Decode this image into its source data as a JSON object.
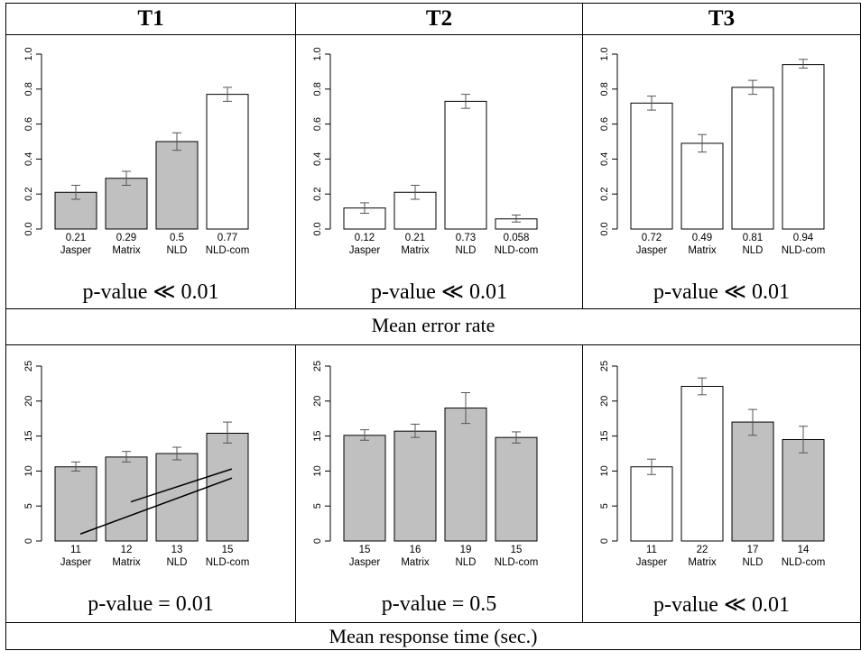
{
  "columns": [
    "T1",
    "T2",
    "T3"
  ],
  "sections": [
    "Mean error rate",
    "Mean response time (sec.)"
  ],
  "p_values": [
    [
      "p-value ≪ 0.01",
      "p-value ≪ 0.01",
      "p-value ≪ 0.01"
    ],
    [
      "p-value = 0.01",
      "p-value = 0.5",
      "p-value ≪ 0.01"
    ]
  ],
  "colors": {
    "shaded": "#c0c0c0",
    "unshaded": "#ffffff",
    "stroke": "#000000"
  },
  "chart_data": [
    {
      "type": "bar",
      "row": 0,
      "col": 0,
      "categories": [
        "Jasper",
        "Matrix",
        "NLD",
        "NLD-com"
      ],
      "values": [
        0.21,
        0.29,
        0.5,
        0.77
      ],
      "value_labels": [
        "0.21",
        "0.29",
        "0.5",
        "0.77"
      ],
      "errors": [
        [
          0.17,
          0.25
        ],
        [
          0.25,
          0.33
        ],
        [
          0.45,
          0.55
        ],
        [
          0.73,
          0.81
        ]
      ],
      "fill": [
        "shaded",
        "shaded",
        "shaded",
        "unshaded"
      ],
      "ylim": [
        0,
        1.0
      ],
      "yticks": [
        "0.0",
        "0.2",
        "0.4",
        "0.6",
        "0.8",
        "1.0"
      ],
      "ytick_values": [
        0,
        0.2,
        0.4,
        0.6,
        0.8,
        1.0
      ]
    },
    {
      "type": "bar",
      "row": 0,
      "col": 1,
      "categories": [
        "Jasper",
        "Matrix",
        "NLD",
        "NLD-com"
      ],
      "values": [
        0.12,
        0.21,
        0.73,
        0.058
      ],
      "value_labels": [
        "0.12",
        "0.21",
        "0.73",
        "0.058"
      ],
      "errors": [
        [
          0.09,
          0.15
        ],
        [
          0.17,
          0.25
        ],
        [
          0.69,
          0.77
        ],
        [
          0.04,
          0.08
        ]
      ],
      "fill": [
        "unshaded",
        "unshaded",
        "unshaded",
        "unshaded"
      ],
      "ylim": [
        0,
        1.0
      ],
      "yticks": [
        "0.0",
        "0.2",
        "0.4",
        "0.6",
        "0.8",
        "1.0"
      ],
      "ytick_values": [
        0,
        0.2,
        0.4,
        0.6,
        0.8,
        1.0
      ]
    },
    {
      "type": "bar",
      "row": 0,
      "col": 2,
      "categories": [
        "Jasper",
        "Matrix",
        "NLD",
        "NLD-com"
      ],
      "values": [
        0.72,
        0.49,
        0.81,
        0.94
      ],
      "value_labels": [
        "0.72",
        "0.49",
        "0.81",
        "0.94"
      ],
      "errors": [
        [
          0.68,
          0.76
        ],
        [
          0.44,
          0.54
        ],
        [
          0.77,
          0.85
        ],
        [
          0.92,
          0.97
        ]
      ],
      "fill": [
        "unshaded",
        "unshaded",
        "unshaded",
        "unshaded"
      ],
      "ylim": [
        0,
        1.0
      ],
      "yticks": [
        "0.0",
        "0.2",
        "0.4",
        "0.6",
        "0.8",
        "1.0"
      ],
      "ytick_values": [
        0,
        0.2,
        0.4,
        0.6,
        0.8,
        1.0
      ]
    },
    {
      "type": "bar",
      "row": 1,
      "col": 0,
      "categories": [
        "Jasper",
        "Matrix",
        "NLD",
        "NLD-com"
      ],
      "values": [
        10.6,
        12.0,
        12.5,
        15.4
      ],
      "value_labels": [
        "11",
        "12",
        "13",
        "15"
      ],
      "errors": [
        [
          10.0,
          11.3
        ],
        [
          11.3,
          12.8
        ],
        [
          11.6,
          13.4
        ],
        [
          14.0,
          17.0
        ]
      ],
      "fill": [
        "shaded",
        "shaded",
        "shaded",
        "shaded"
      ],
      "trend_lines": [
        {
          "from": [
            0.5,
            1.0
          ],
          "to": [
            3.5,
            9.0
          ]
        },
        {
          "from": [
            1.5,
            5.6
          ],
          "to": [
            3.5,
            10.3
          ]
        }
      ],
      "ylim": [
        0,
        25
      ],
      "yticks": [
        "0",
        "5",
        "10",
        "15",
        "20",
        "25"
      ],
      "ytick_values": [
        0,
        5,
        10,
        15,
        20,
        25
      ]
    },
    {
      "type": "bar",
      "row": 1,
      "col": 1,
      "categories": [
        "Jasper",
        "Matrix",
        "NLD",
        "NLD-com"
      ],
      "values": [
        15.1,
        15.7,
        19.0,
        14.8
      ],
      "value_labels": [
        "15",
        "16",
        "19",
        "15"
      ],
      "errors": [
        [
          14.4,
          15.9
        ],
        [
          14.8,
          16.7
        ],
        [
          16.8,
          21.2
        ],
        [
          14.0,
          15.6
        ]
      ],
      "fill": [
        "shaded",
        "shaded",
        "shaded",
        "shaded"
      ],
      "ylim": [
        0,
        25
      ],
      "yticks": [
        "0",
        "5",
        "10",
        "15",
        "20",
        "25"
      ],
      "ytick_values": [
        0,
        5,
        10,
        15,
        20,
        25
      ]
    },
    {
      "type": "bar",
      "row": 1,
      "col": 2,
      "categories": [
        "Jasper",
        "Matrix",
        "NLD",
        "NLD-com"
      ],
      "values": [
        10.6,
        22.1,
        17.0,
        14.5
      ],
      "value_labels": [
        "11",
        "22",
        "17",
        "14"
      ],
      "errors": [
        [
          9.5,
          11.7
        ],
        [
          20.9,
          23.3
        ],
        [
          15.1,
          18.8
        ],
        [
          12.6,
          16.4
        ]
      ],
      "fill": [
        "unshaded",
        "unshaded",
        "shaded",
        "shaded"
      ],
      "ylim": [
        0,
        25
      ],
      "yticks": [
        "0",
        "5",
        "10",
        "15",
        "20",
        "25"
      ],
      "ytick_values": [
        0,
        5,
        10,
        15,
        20,
        25
      ]
    }
  ]
}
